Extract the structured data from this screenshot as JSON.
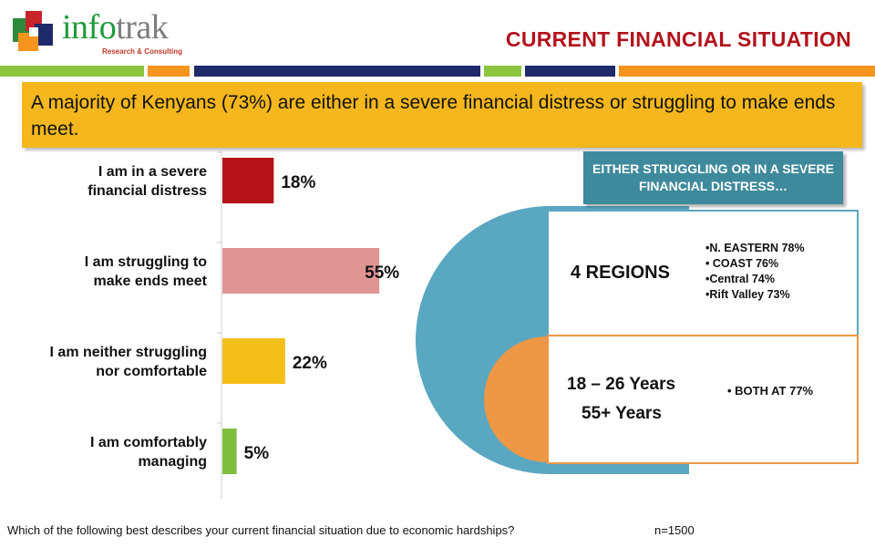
{
  "brand": {
    "name_part1": "info",
    "name_part2": "trak",
    "tagline": "Research & Consulting"
  },
  "title": "CURRENT FINANCIAL SITUATION",
  "headline": "A majority of Kenyans (73%) are either in a severe financial distress or struggling to make ends meet.",
  "colors": {
    "title_red": "#b3121c",
    "banner_yellow": "#f5b71d",
    "teal": "#3e8a9c",
    "blue": "#5aa7c2",
    "orange": "#ee9745",
    "stripe": [
      "#8cc63f",
      "#f7941d",
      "#1f2a6b",
      "#8cc63f",
      "#1f2a6b",
      "#f7941d"
    ]
  },
  "chart_data": {
    "type": "bar",
    "orientation": "horizontal",
    "categories": [
      "I am in a severe financial distress",
      "I am struggling to make ends meet",
      "I am neither struggling nor comfortable",
      "I am comfortably managing"
    ],
    "category_lines": [
      [
        "I am in a severe",
        "financial distress"
      ],
      [
        "I am struggling to",
        "make ends meet"
      ],
      [
        "I am neither struggling",
        "nor comfortable"
      ],
      [
        "I am comfortably",
        "managing"
      ]
    ],
    "values": [
      18,
      55,
      22,
      5
    ],
    "value_labels": [
      "18%",
      "55%",
      "22%",
      "5%"
    ],
    "bar_colors": [
      "#b5121b",
      "#e09595",
      "#f5bf1a",
      "#7fbf40"
    ],
    "xlim": [
      0,
      60
    ],
    "grid": false,
    "legend": "none"
  },
  "callout": {
    "header": "EITHER STRUGGLING OR IN A SEVERE FINANCIAL DISTRESS…",
    "regions_title": "4 REGIONS",
    "regions": [
      "•N. EASTERN  78%",
      "• COAST 76%",
      "•Central 74%",
      "•Rift Valley 73%"
    ],
    "age_line1": "18 – 26 Years",
    "age_line2": "55+ Years",
    "age_note": "• BOTH AT 77%"
  },
  "footer": {
    "question": "Which of the following best describes your current financial situation due to economic hardships?",
    "sample": "n=1500"
  }
}
